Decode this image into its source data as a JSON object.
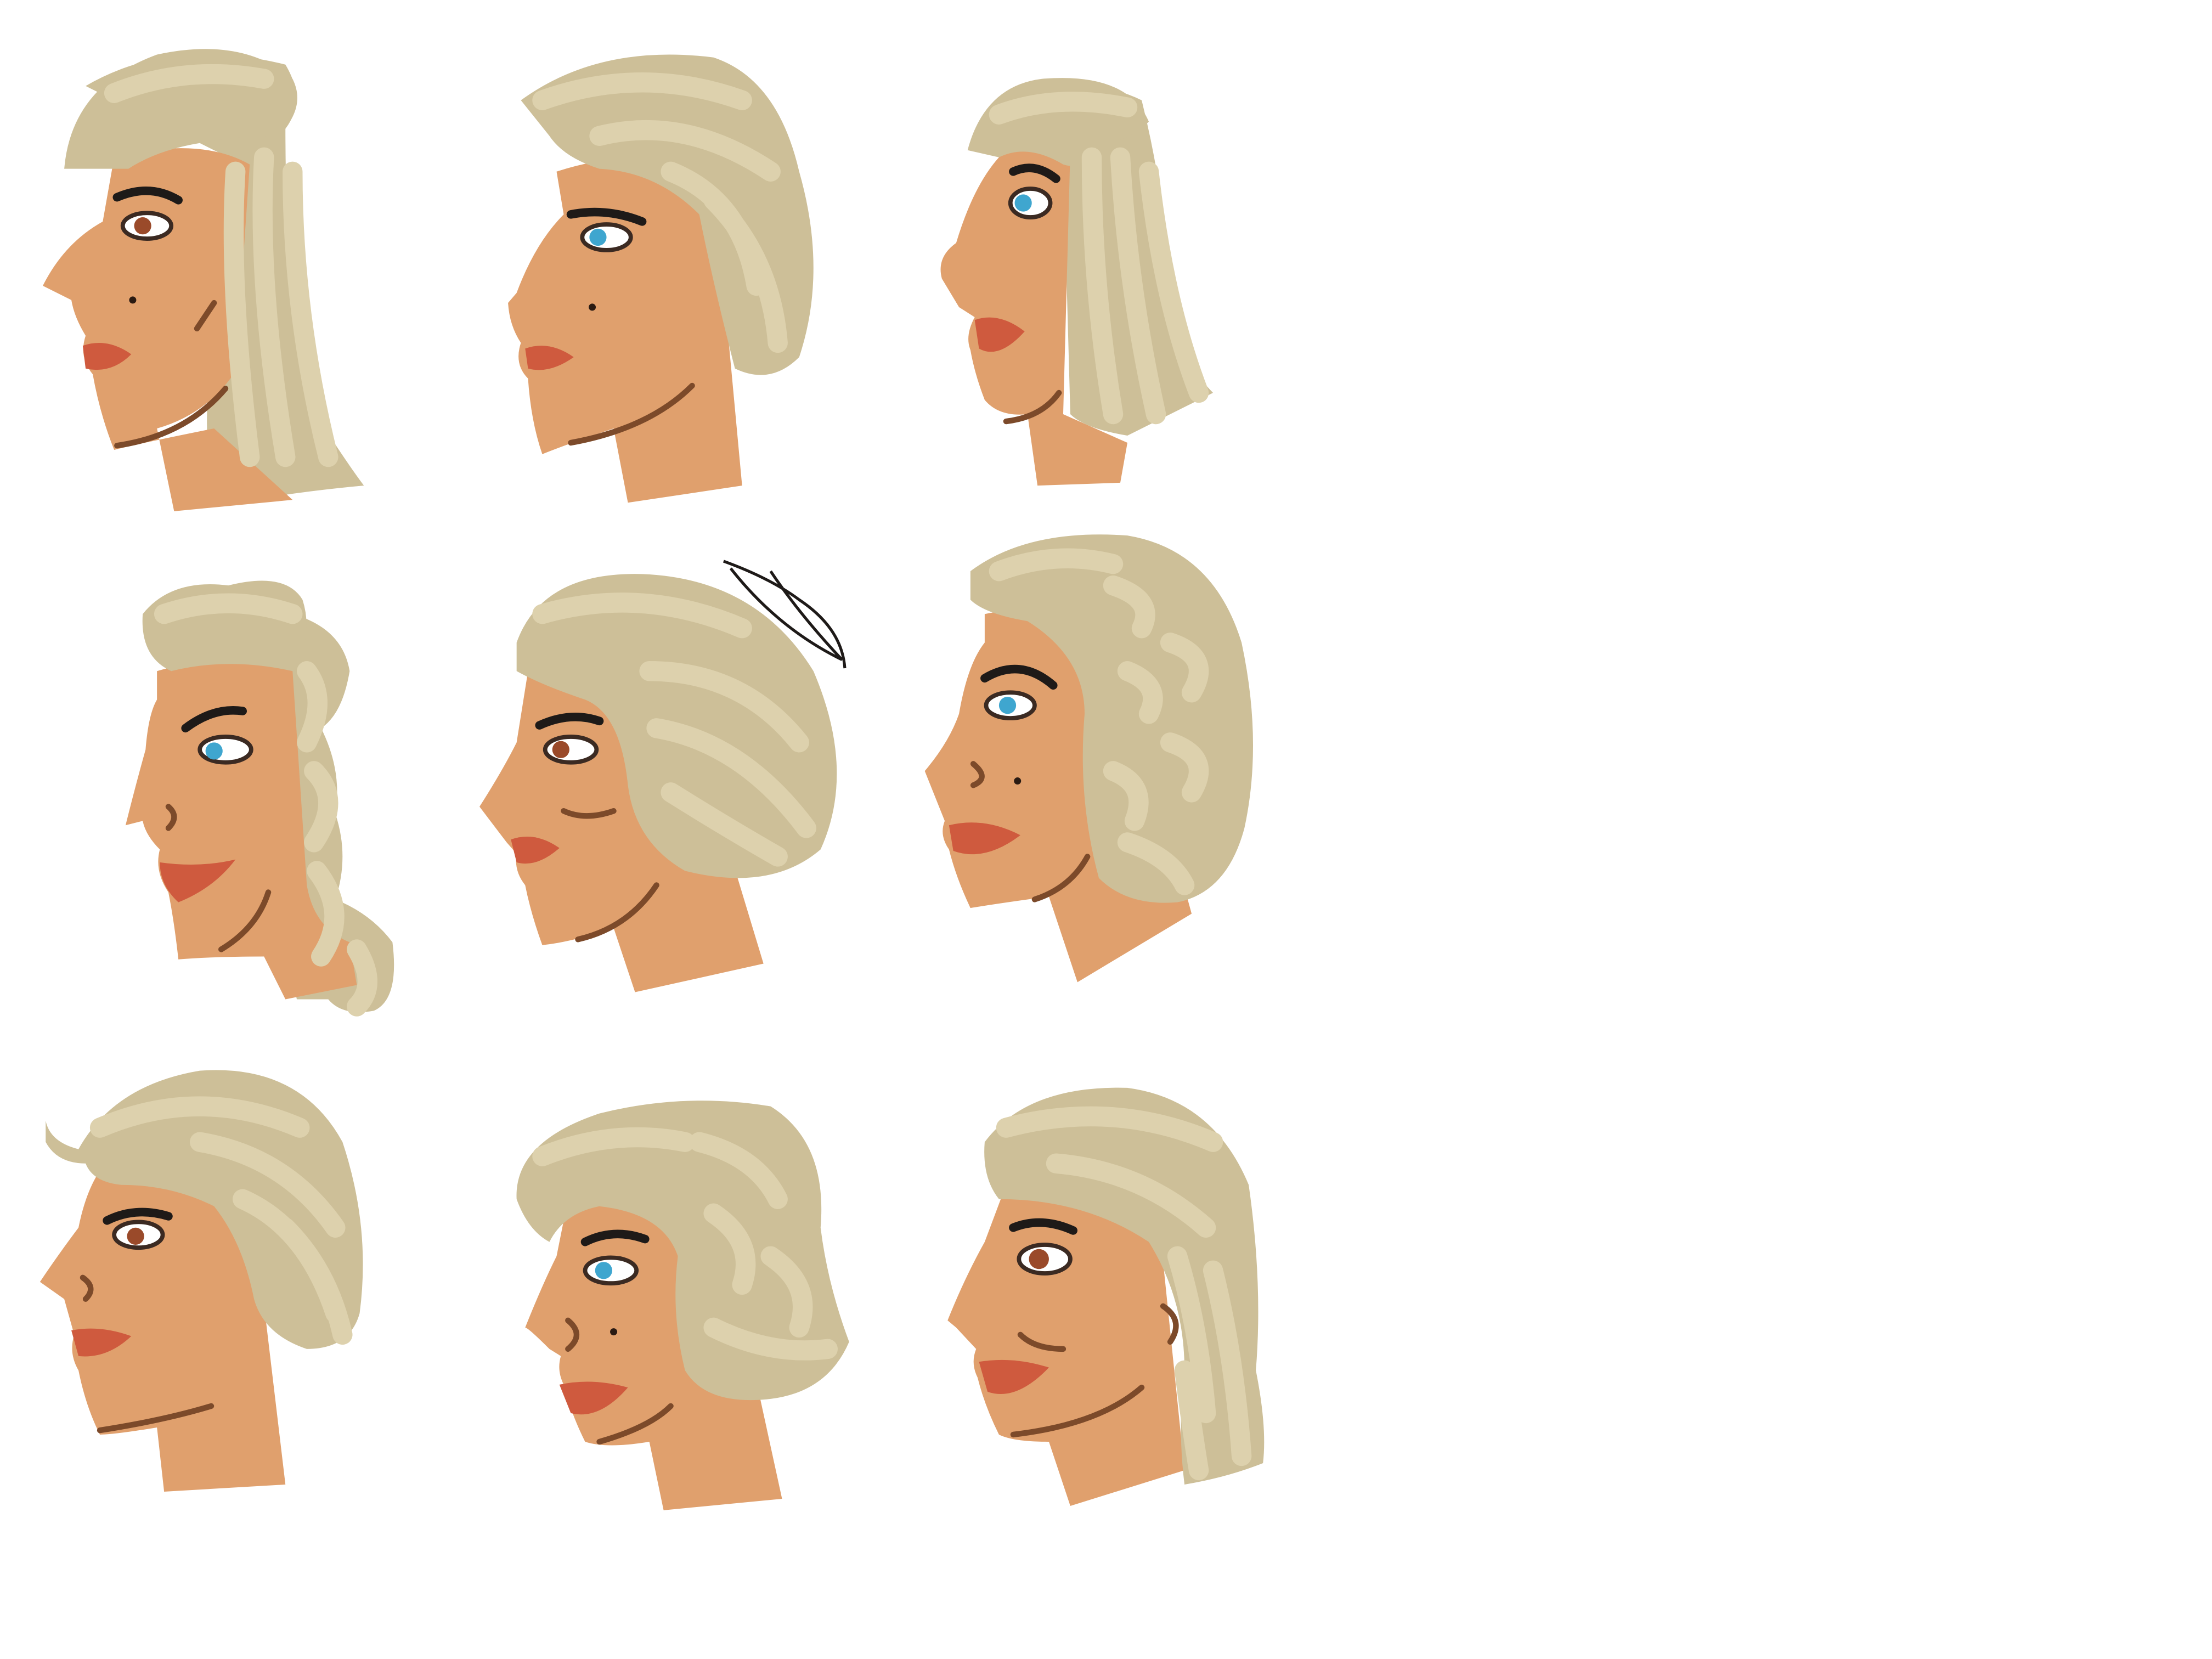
{
  "illustration": {
    "subject": "hairstyle-profile-heads",
    "colors": {
      "background": "#ffffff",
      "hair": "#cdbf98",
      "hair_highlight": "#ddd1ad",
      "skin": "#e0a06d",
      "lip": "#cf5a3e",
      "outline": "#7c4a2a",
      "brow": "#1e1a18"
    },
    "heads": [
      {
        "id": 1,
        "row": 1,
        "col": 1,
        "hair": "long-straight",
        "eye": "#9a4a2a",
        "mole": true
      },
      {
        "id": 2,
        "row": 1,
        "col": 2,
        "hair": "short-swept-back",
        "eye": "#3fa6cf",
        "mole": true
      },
      {
        "id": 3,
        "row": 1,
        "col": 3,
        "hair": "shoulder-length-bangs",
        "eye": "#3fa6cf",
        "mole": false
      },
      {
        "id": 4,
        "row": 2,
        "col": 1,
        "hair": "pompadour-ringlets",
        "eye": "#3fa6cf",
        "mole": false
      },
      {
        "id": 5,
        "row": 2,
        "col": 2,
        "hair": "rounded-bun",
        "eye": "#9a4a2a",
        "mole": false,
        "hairpin": true
      },
      {
        "id": 6,
        "row": 2,
        "col": 3,
        "hair": "pin-curls",
        "eye": "#3fa6cf",
        "mole": true
      },
      {
        "id": 7,
        "row": 3,
        "col": 1,
        "hair": "short-flip",
        "eye": "#9a4a2a",
        "mole": false
      },
      {
        "id": 8,
        "row": 3,
        "col": 2,
        "hair": "voluminous-curls",
        "eye": "#3fa6cf",
        "mole": true
      },
      {
        "id": 9,
        "row": 3,
        "col": 3,
        "hair": "mid-length-feathered",
        "eye": "#9a4a2a",
        "mole": false
      }
    ]
  }
}
